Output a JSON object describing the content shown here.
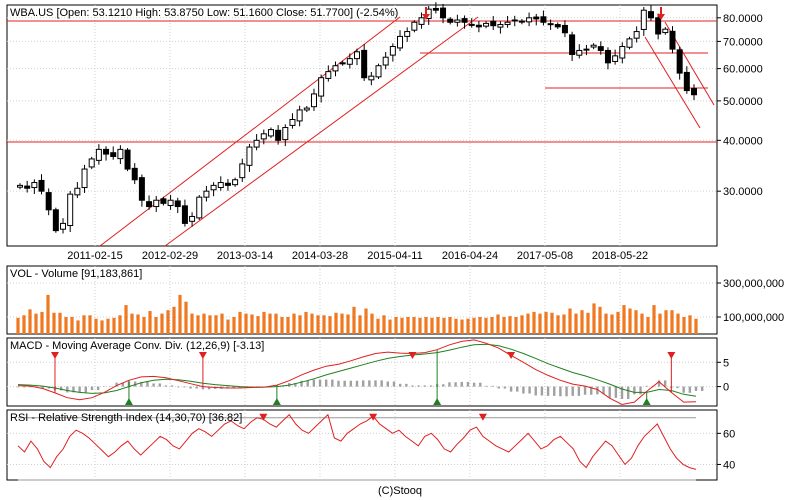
{
  "chart_data": [
    {
      "type": "candlestick",
      "title": "WBA.US [Open: 53.1210   High: 53.8750   Low: 51.1600   Close: 51.7700]  (-2.54%)",
      "title_change": "(-2.54%)",
      "yticks": [
        30,
        40,
        50,
        60,
        70,
        80
      ],
      "ytick_labels": [
        "30.0000",
        "40.0000",
        "50.0000",
        "60.0000",
        "70.0000",
        "80.0000"
      ],
      "y_scale": "log",
      "ylim": [
        22,
        86
      ],
      "xtick_labels": [
        "2011-02-15",
        "2012-02-29",
        "2013-03-14",
        "2014-03-28",
        "2015-04-11",
        "2016-04-24",
        "2017-05-08",
        "2018-05-22"
      ],
      "weekly_closes": [
        31,
        30.5,
        31.5,
        30,
        27,
        24,
        25,
        29.5,
        30.5,
        34,
        36,
        38,
        37,
        36.5,
        38,
        34,
        32,
        28.5,
        27.5,
        28.5,
        28,
        28.5,
        27.5,
        25,
        26,
        29,
        30,
        31,
        31.5,
        31,
        32,
        35,
        38.5,
        40,
        41.5,
        42.5,
        40,
        43,
        45,
        47.5,
        48,
        52,
        57,
        59,
        61,
        62,
        63.5,
        66,
        57,
        57.5,
        61,
        64,
        68,
        72,
        74,
        78,
        80,
        84,
        83.5,
        80,
        78,
        79,
        78,
        77,
        76,
        77.5,
        76.5,
        77,
        78,
        79,
        78.5,
        80,
        79.5,
        78,
        77,
        76,
        73.5,
        65,
        66.5,
        67,
        68.5,
        66.5,
        62,
        64.5,
        68,
        71,
        74,
        83.5,
        80,
        73,
        75,
        67,
        58.5,
        53,
        51.77
      ],
      "annotations": [
        "red arrows marking peaks",
        "red trend channels",
        "red horizontal resistance/support lines"
      ]
    },
    {
      "type": "bar",
      "title": "VOL - Volume [91,183,861]",
      "ytick_labels": [
        "100,000,000",
        "300,000,000"
      ],
      "yticks": [
        100000000,
        300000000
      ],
      "ylim": [
        0,
        400000000
      ],
      "values": [
        95,
        110,
        145,
        120,
        130,
        230,
        125,
        125,
        100,
        100,
        80,
        110,
        110,
        90,
        80,
        90,
        95,
        110,
        170,
        120,
        115,
        100,
        135,
        100,
        120,
        140,
        160,
        230,
        190,
        120,
        110,
        120,
        110,
        110,
        120,
        85,
        100,
        130,
        120,
        115,
        105,
        130,
        120,
        120,
        100,
        100,
        120,
        110,
        130,
        120,
        110,
        110,
        105,
        125,
        120,
        115,
        160,
        110,
        150,
        120,
        90,
        110,
        85,
        100,
        95,
        100,
        100,
        95,
        100,
        95,
        100,
        95,
        100,
        90,
        85,
        90,
        95,
        100,
        95,
        100,
        115,
        100,
        105,
        100,
        110,
        120,
        130,
        120,
        130,
        125,
        110,
        115,
        150,
        120,
        140,
        125,
        180,
        160,
        120,
        115,
        130,
        170,
        150,
        140,
        120,
        100,
        170,
        120,
        140,
        140,
        120,
        100,
        110,
        90
      ],
      "values_unit": "millions"
    },
    {
      "type": "line",
      "title": "MACD - Moving Average Conv. Div. (12,26,9) [-3.13]",
      "ytick_labels": [
        "0",
        "5"
      ],
      "yticks": [
        0,
        5
      ],
      "ylim": [
        -4,
        10
      ],
      "macd": [
        0.2,
        0.1,
        -0.4,
        -1.3,
        -2.3,
        -2.7,
        -2.3,
        -1.2,
        0.2,
        1.3,
        2.0,
        2.1,
        1.8,
        1.2,
        0.6,
        0.0,
        -0.2,
        -0.3,
        -0.3,
        -0.2,
        -0.1,
        0.3,
        1.2,
        2.4,
        3.4,
        4.2,
        4.6,
        5.3,
        6.1,
        6.8,
        7.1,
        6.9,
        6.8,
        7.0,
        7.6,
        8.6,
        9.3,
        9.6,
        8.9,
        7.9,
        6.4,
        5.0,
        3.5,
        2.3,
        1.3,
        0.5,
        0.1,
        -0.6,
        -2.4,
        -3.7,
        -3.2,
        -1.0,
        1.0,
        -1.2,
        -3.2,
        -3.13
      ],
      "signal": [
        0.4,
        0.3,
        0.1,
        -0.3,
        -0.8,
        -1.2,
        -1.4,
        -1.3,
        -0.8,
        0.0,
        0.8,
        1.3,
        1.5,
        1.4,
        1.1,
        0.7,
        0.4,
        0.2,
        0.0,
        -0.1,
        -0.1,
        0.0,
        0.3,
        0.9,
        1.6,
        2.4,
        3.1,
        3.8,
        4.5,
        5.2,
        5.8,
        6.2,
        6.5,
        6.7,
        7.0,
        7.5,
        8.1,
        8.6,
        8.7,
        8.4,
        7.7,
        6.8,
        5.8,
        4.7,
        3.8,
        2.9,
        2.2,
        1.4,
        0.5,
        -0.5,
        -1.2,
        -1.2,
        -0.6,
        -0.8,
        -1.6,
        -2.0
      ],
      "crossovers": [
        {
          "i": 3,
          "dir": "down"
        },
        {
          "i": 9,
          "dir": "up"
        },
        {
          "i": 15,
          "dir": "down"
        },
        {
          "i": 21,
          "dir": "up"
        },
        {
          "i": 32,
          "dir": "down"
        },
        {
          "i": 34,
          "dir": "up"
        },
        {
          "i": 40,
          "dir": "down"
        },
        {
          "i": 51,
          "dir": "up"
        },
        {
          "i": 53,
          "dir": "down"
        }
      ]
    },
    {
      "type": "line",
      "title": "RSI - Relative Strength Index (14,30,70) [36.82]",
      "ytick_labels": [
        "40",
        "60"
      ],
      "yticks": [
        40,
        60
      ],
      "ylim": [
        30,
        75
      ],
      "levels": [
        30,
        70
      ],
      "values": [
        52,
        48,
        55,
        50,
        42,
        38,
        45,
        50,
        58,
        62,
        60,
        57,
        53,
        49,
        45,
        48,
        52,
        55,
        50,
        46,
        50,
        54,
        58,
        56,
        52,
        50,
        55,
        60,
        63,
        61,
        58,
        62,
        66,
        68,
        65,
        63,
        67,
        70,
        69,
        66,
        64,
        68,
        72,
        66,
        62,
        60,
        64,
        68,
        72,
        57,
        55,
        60,
        63,
        66,
        68,
        71,
        66,
        63,
        60,
        62,
        58,
        55,
        52,
        58,
        60,
        56,
        50,
        48,
        53,
        57,
        62,
        64,
        58,
        55,
        52,
        50,
        48,
        52,
        56,
        60,
        55,
        50,
        52,
        56,
        58,
        54,
        50,
        42,
        38,
        45,
        50,
        55,
        52,
        46,
        40,
        44,
        52,
        58,
        62,
        66,
        58,
        50,
        44,
        40,
        38,
        36.82
      ],
      "marker_indices": [
        38,
        55,
        72
      ]
    }
  ],
  "footer": "(C)Stooq",
  "colors": {
    "up_body": "#ffffff",
    "down_body": "#000000",
    "volume": "#f07820",
    "line_red": "#e02020",
    "line_green": "#208020",
    "histogram": "#a0a0a0",
    "grid": "#d0d0d0"
  }
}
